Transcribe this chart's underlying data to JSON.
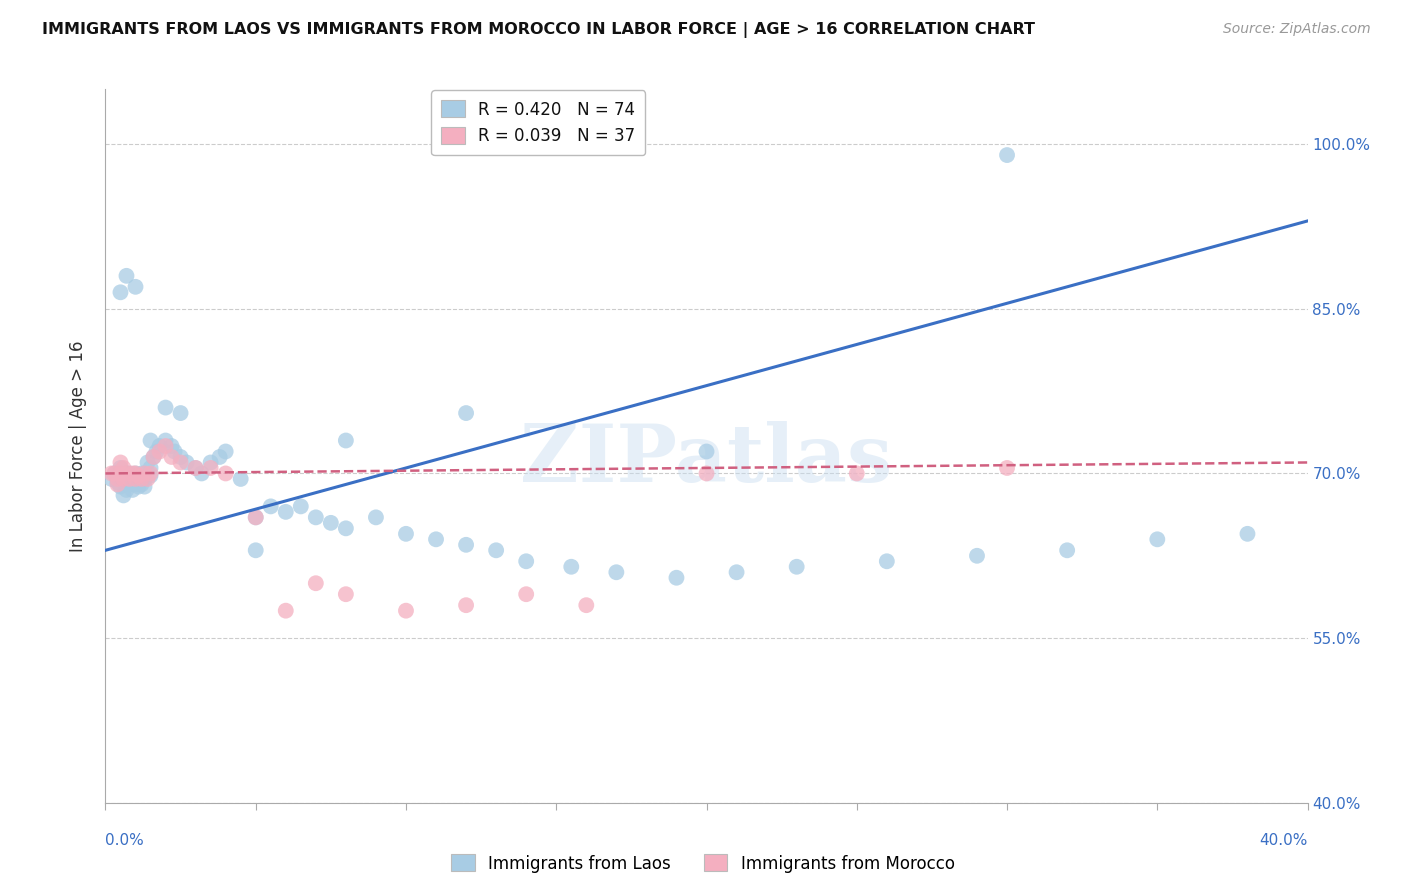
{
  "title": "IMMIGRANTS FROM LAOS VS IMMIGRANTS FROM MOROCCO IN LABOR FORCE | AGE > 16 CORRELATION CHART",
  "source": "Source: ZipAtlas.com",
  "ylabel": "In Labor Force | Age > 16",
  "ylabel_right_ticks": [
    "100.0%",
    "85.0%",
    "70.0%",
    "55.0%",
    "40.0%"
  ],
  "ylabel_right_vals": [
    1.0,
    0.85,
    0.7,
    0.55,
    0.4
  ],
  "xmin": 0.0,
  "xmax": 0.4,
  "ymin": 0.4,
  "ymax": 1.05,
  "legend_blue_R": "R = 0.420",
  "legend_blue_N": "N = 74",
  "legend_pink_R": "R = 0.039",
  "legend_pink_N": "N = 37",
  "blue_color": "#a8cce4",
  "pink_color": "#f4afc0",
  "line_blue": "#3a6fc4",
  "line_pink": "#d06080",
  "watermark": "ZIPatlas",
  "blue_scatter_x": [
    0.002,
    0.003,
    0.004,
    0.004,
    0.005,
    0.005,
    0.006,
    0.006,
    0.007,
    0.007,
    0.008,
    0.008,
    0.009,
    0.009,
    0.01,
    0.01,
    0.01,
    0.011,
    0.011,
    0.012,
    0.012,
    0.013,
    0.013,
    0.014,
    0.015,
    0.015,
    0.016,
    0.017,
    0.018,
    0.02,
    0.022,
    0.023,
    0.025,
    0.027,
    0.03,
    0.032,
    0.035,
    0.038,
    0.04,
    0.045,
    0.05,
    0.055,
    0.06,
    0.065,
    0.07,
    0.075,
    0.08,
    0.09,
    0.1,
    0.11,
    0.12,
    0.13,
    0.14,
    0.155,
    0.17,
    0.19,
    0.21,
    0.23,
    0.26,
    0.29,
    0.32,
    0.35,
    0.38,
    0.005,
    0.007,
    0.01,
    0.015,
    0.02,
    0.025,
    0.05,
    0.08,
    0.12,
    0.2,
    0.3
  ],
  "blue_scatter_y": [
    0.695,
    0.7,
    0.698,
    0.692,
    0.705,
    0.688,
    0.695,
    0.68,
    0.7,
    0.685,
    0.69,
    0.7,
    0.695,
    0.685,
    0.69,
    0.695,
    0.7,
    0.688,
    0.692,
    0.69,
    0.7,
    0.695,
    0.688,
    0.71,
    0.705,
    0.698,
    0.715,
    0.72,
    0.725,
    0.73,
    0.725,
    0.72,
    0.715,
    0.71,
    0.705,
    0.7,
    0.71,
    0.715,
    0.72,
    0.695,
    0.66,
    0.67,
    0.665,
    0.67,
    0.66,
    0.655,
    0.65,
    0.66,
    0.645,
    0.64,
    0.635,
    0.63,
    0.62,
    0.615,
    0.61,
    0.605,
    0.61,
    0.615,
    0.62,
    0.625,
    0.63,
    0.64,
    0.645,
    0.865,
    0.88,
    0.87,
    0.73,
    0.76,
    0.755,
    0.63,
    0.73,
    0.755,
    0.72,
    0.99
  ],
  "pink_scatter_x": [
    0.002,
    0.003,
    0.004,
    0.004,
    0.005,
    0.005,
    0.006,
    0.006,
    0.007,
    0.008,
    0.009,
    0.01,
    0.01,
    0.011,
    0.012,
    0.013,
    0.014,
    0.015,
    0.016,
    0.018,
    0.02,
    0.022,
    0.025,
    0.03,
    0.035,
    0.04,
    0.05,
    0.06,
    0.07,
    0.08,
    0.1,
    0.12,
    0.14,
    0.16,
    0.2,
    0.25,
    0.3
  ],
  "pink_scatter_y": [
    0.7,
    0.7,
    0.695,
    0.69,
    0.71,
    0.7,
    0.695,
    0.705,
    0.7,
    0.695,
    0.7,
    0.695,
    0.7,
    0.698,
    0.695,
    0.7,
    0.695,
    0.7,
    0.715,
    0.72,
    0.725,
    0.715,
    0.71,
    0.705,
    0.705,
    0.7,
    0.66,
    0.575,
    0.6,
    0.59,
    0.575,
    0.58,
    0.59,
    0.58,
    0.7,
    0.7,
    0.705
  ],
  "blue_line_x": [
    0.0,
    0.4
  ],
  "blue_line_y": [
    0.63,
    0.93
  ],
  "pink_line_x": [
    0.0,
    0.4
  ],
  "pink_line_y": [
    0.7,
    0.71
  ]
}
